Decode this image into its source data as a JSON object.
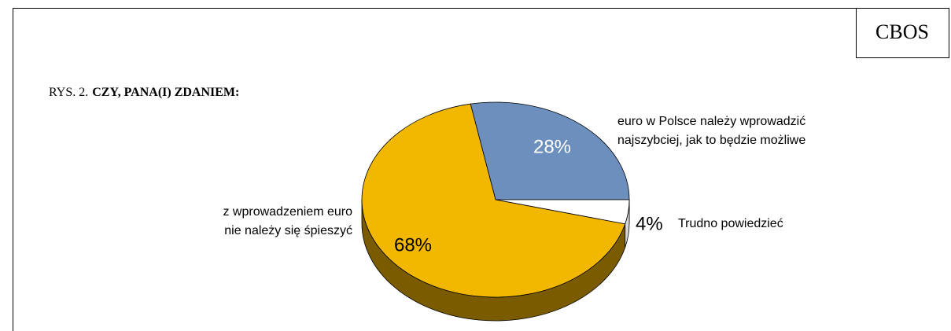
{
  "chart_data": {
    "type": "pie",
    "source": "CBOS",
    "label": "RYS. 2.",
    "title": "CZY, PANA(I) ZDANIEM:",
    "categories": [
      [
        "euro w Polsce należy wprowadzić",
        "najszybciej, jak to będzie możliwe"
      ],
      [
        "Trudno powiedzieć"
      ],
      [
        "z wprowadzeniem euro",
        "nie należy się śpieszyć"
      ]
    ],
    "values": [
      28,
      4,
      68
    ],
    "value_labels": [
      "28%",
      "4%",
      "68%"
    ],
    "colors": [
      "#6d8fbd",
      "#ffffff",
      "#f2b800"
    ],
    "side_colors": [
      "#3d5574",
      "#d8d8d8",
      "#7a5b00"
    ]
  }
}
